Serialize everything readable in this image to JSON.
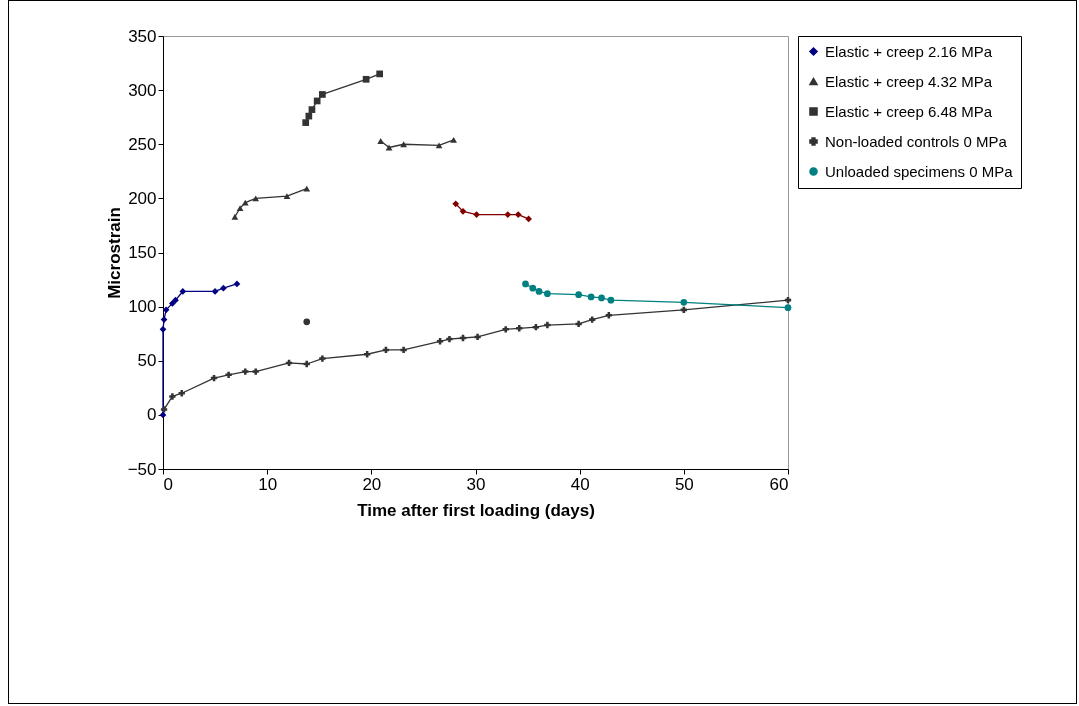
{
  "chart_data": {
    "type": "line",
    "xlabel": "Time after first loading (days)",
    "ylabel": "Microstrain",
    "xlim": [
      0,
      60
    ],
    "xticks": [
      0,
      10,
      20,
      30,
      40,
      50,
      60
    ],
    "ylim": [
      -50,
      350
    ],
    "yticks": [
      -50,
      0,
      50,
      100,
      150,
      200,
      250,
      300,
      350
    ],
    "grid": false,
    "legend": "right",
    "series": [
      {
        "name": "Elastic + creep 2.16 MPa",
        "color": "#000080",
        "marker": "diamond",
        "x": [
          0,
          0,
          0.1,
          0.3,
          0.9,
          1.2,
          1.9,
          5.0,
          5.8,
          7.1
        ],
        "values": [
          0,
          79,
          88,
          97,
          103,
          106,
          114,
          114,
          117,
          121
        ]
      },
      {
        "name": "Elastic + creep 4.32 MPa",
        "color": "#333333",
        "marker": "triangle",
        "x": [
          6.9,
          7.4,
          7.9,
          8.9,
          11.9,
          13.8
        ],
        "values": [
          183,
          191,
          196,
          200,
          202,
          209
        ]
      },
      {
        "name": "Elastic + creep 6.48 MPa",
        "color": "#333333",
        "marker": "square",
        "x": [
          13.7,
          14.0,
          14.3,
          14.8,
          15.3,
          19.5,
          20.8
        ],
        "values": [
          270,
          276,
          282,
          290,
          296,
          310,
          315
        ]
      },
      {
        "name": "Non-loaded controls 0 MPa",
        "color": "#333333",
        "marker": "cross",
        "x": [
          0.1,
          0.9,
          1.8,
          4.9,
          6.3,
          7.9,
          8.9,
          12.1,
          13.8,
          15.3,
          19.6,
          21.4,
          23.1,
          26.6,
          27.5,
          28.8,
          30.2,
          32.9,
          34.2,
          35.8,
          36.9,
          39.9,
          41.2,
          42.8,
          50,
          60
        ],
        "values": [
          5,
          17,
          20,
          34,
          37,
          40,
          40,
          48,
          47,
          52,
          56,
          60,
          60,
          68,
          70,
          71,
          72,
          79,
          80,
          81,
          83,
          84,
          88,
          92,
          97,
          106
        ]
      },
      {
        "name": "Unloaded specimens 0 MPa",
        "color": "#008080",
        "marker": "circle",
        "x": [
          34.8,
          35.5,
          36.1,
          36.9,
          39.9,
          41.1,
          42.1,
          43.0,
          50,
          60
        ],
        "values": [
          121,
          117,
          114,
          112,
          111,
          109,
          108,
          106,
          104,
          99
        ]
      },
      {
        "color": "#333333",
        "marker": "triangle",
        "x": [
          20.9,
          21.7,
          23.1,
          26.5,
          27.9
        ],
        "values": [
          253,
          247,
          250,
          249,
          254
        ]
      },
      {
        "color": "#800000",
        "marker": "diamond",
        "x": [
          28.1,
          28.8,
          30.1,
          33.1,
          34.1,
          35.1
        ],
        "values": [
          195,
          188,
          185,
          185,
          185,
          181
        ]
      },
      {
        "type": "scatter",
        "color": "#333333",
        "marker": "circle",
        "x": [
          13.8
        ],
        "values": [
          86
        ]
      }
    ]
  }
}
